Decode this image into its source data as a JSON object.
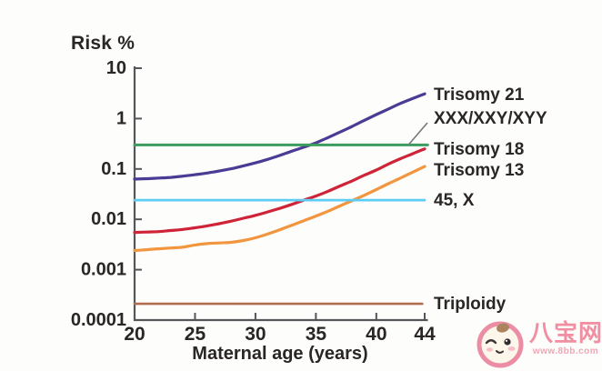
{
  "watermark": {
    "site_name": "八宝网",
    "url": "www.8bb.com"
  },
  "chart_data": {
    "type": "line",
    "title": "",
    "ylabel": "Risk %",
    "xlabel": "Maternal age (years)",
    "legend_position": "right-edge-labels",
    "grid": false,
    "x_axis": {
      "min": 20,
      "max": 44,
      "ticks": [
        20,
        25,
        30,
        35,
        40,
        44
      ],
      "tick_labels": [
        "20",
        "25",
        "30",
        "35",
        "40",
        "44"
      ]
    },
    "y_axis": {
      "scale": "log",
      "min": 0.0001,
      "max": 10,
      "ticks": [
        10,
        1,
        0.1,
        0.01,
        0.001,
        0.0001
      ],
      "tick_labels": [
        "10",
        "1",
        "0.1",
        "0.01",
        "0.001",
        "0.0001"
      ]
    },
    "series": [
      {
        "name": "Trisomy 21",
        "color": "#4a3b94",
        "points": [
          [
            20,
            0.063
          ],
          [
            21,
            0.064
          ],
          [
            22,
            0.066
          ],
          [
            23,
            0.068
          ],
          [
            24,
            0.072
          ],
          [
            25,
            0.077
          ],
          [
            26,
            0.083
          ],
          [
            27,
            0.091
          ],
          [
            28,
            0.101
          ],
          [
            29,
            0.115
          ],
          [
            30,
            0.132
          ],
          [
            31,
            0.155
          ],
          [
            32,
            0.185
          ],
          [
            33,
            0.225
          ],
          [
            34,
            0.27
          ],
          [
            35,
            0.33
          ],
          [
            36,
            0.42
          ],
          [
            37,
            0.54
          ],
          [
            38,
            0.7
          ],
          [
            39,
            0.92
          ],
          [
            40,
            1.2
          ],
          [
            41,
            1.55
          ],
          [
            42,
            2.0
          ],
          [
            43,
            2.5
          ],
          [
            44,
            3.1
          ]
        ]
      },
      {
        "name": "XXX/XXY/XYY",
        "color": "#3c9c60",
        "annotation_pointer": true,
        "points": [
          [
            20,
            0.3
          ],
          [
            44.25,
            0.3
          ]
        ]
      },
      {
        "name": "Trisomy 18",
        "color": "#cf2338",
        "points": [
          [
            20,
            0.0055
          ],
          [
            21,
            0.0056
          ],
          [
            22,
            0.0057
          ],
          [
            23,
            0.006
          ],
          [
            24,
            0.0063
          ],
          [
            25,
            0.0068
          ],
          [
            26,
            0.0074
          ],
          [
            27,
            0.0082
          ],
          [
            28,
            0.0092
          ],
          [
            29,
            0.0105
          ],
          [
            30,
            0.012
          ],
          [
            31,
            0.014
          ],
          [
            32,
            0.0165
          ],
          [
            33,
            0.0198
          ],
          [
            34,
            0.024
          ],
          [
            35,
            0.029
          ],
          [
            36,
            0.036
          ],
          [
            37,
            0.046
          ],
          [
            38,
            0.058
          ],
          [
            39,
            0.075
          ],
          [
            40,
            0.095
          ],
          [
            41,
            0.125
          ],
          [
            42,
            0.16
          ],
          [
            43,
            0.2
          ],
          [
            44,
            0.25
          ]
        ]
      },
      {
        "name": "Trisomy 13",
        "color": "#f1953f",
        "points": [
          [
            20,
            0.0024
          ],
          [
            21,
            0.0025
          ],
          [
            22,
            0.0026
          ],
          [
            23,
            0.0027
          ],
          [
            24,
            0.0028
          ],
          [
            25,
            0.0031
          ],
          [
            26,
            0.0033
          ],
          [
            27,
            0.0034
          ],
          [
            28,
            0.0035
          ],
          [
            29,
            0.0038
          ],
          [
            30,
            0.0043
          ],
          [
            31,
            0.0051
          ],
          [
            32,
            0.0062
          ],
          [
            33,
            0.0076
          ],
          [
            34,
            0.0094
          ],
          [
            35,
            0.0116
          ],
          [
            36,
            0.0145
          ],
          [
            37,
            0.0185
          ],
          [
            38,
            0.0235
          ],
          [
            39,
            0.03
          ],
          [
            40,
            0.039
          ],
          [
            41,
            0.051
          ],
          [
            42,
            0.066
          ],
          [
            43,
            0.086
          ],
          [
            44,
            0.112
          ]
        ]
      },
      {
        "name": "45, X",
        "color": "#5ecdf4",
        "points": [
          [
            20,
            0.024
          ],
          [
            44,
            0.024
          ]
        ]
      },
      {
        "name": "Triploidy",
        "color": "#b06c51",
        "points": [
          [
            20,
            0.00021
          ],
          [
            43.8,
            0.00021
          ]
        ]
      }
    ]
  }
}
